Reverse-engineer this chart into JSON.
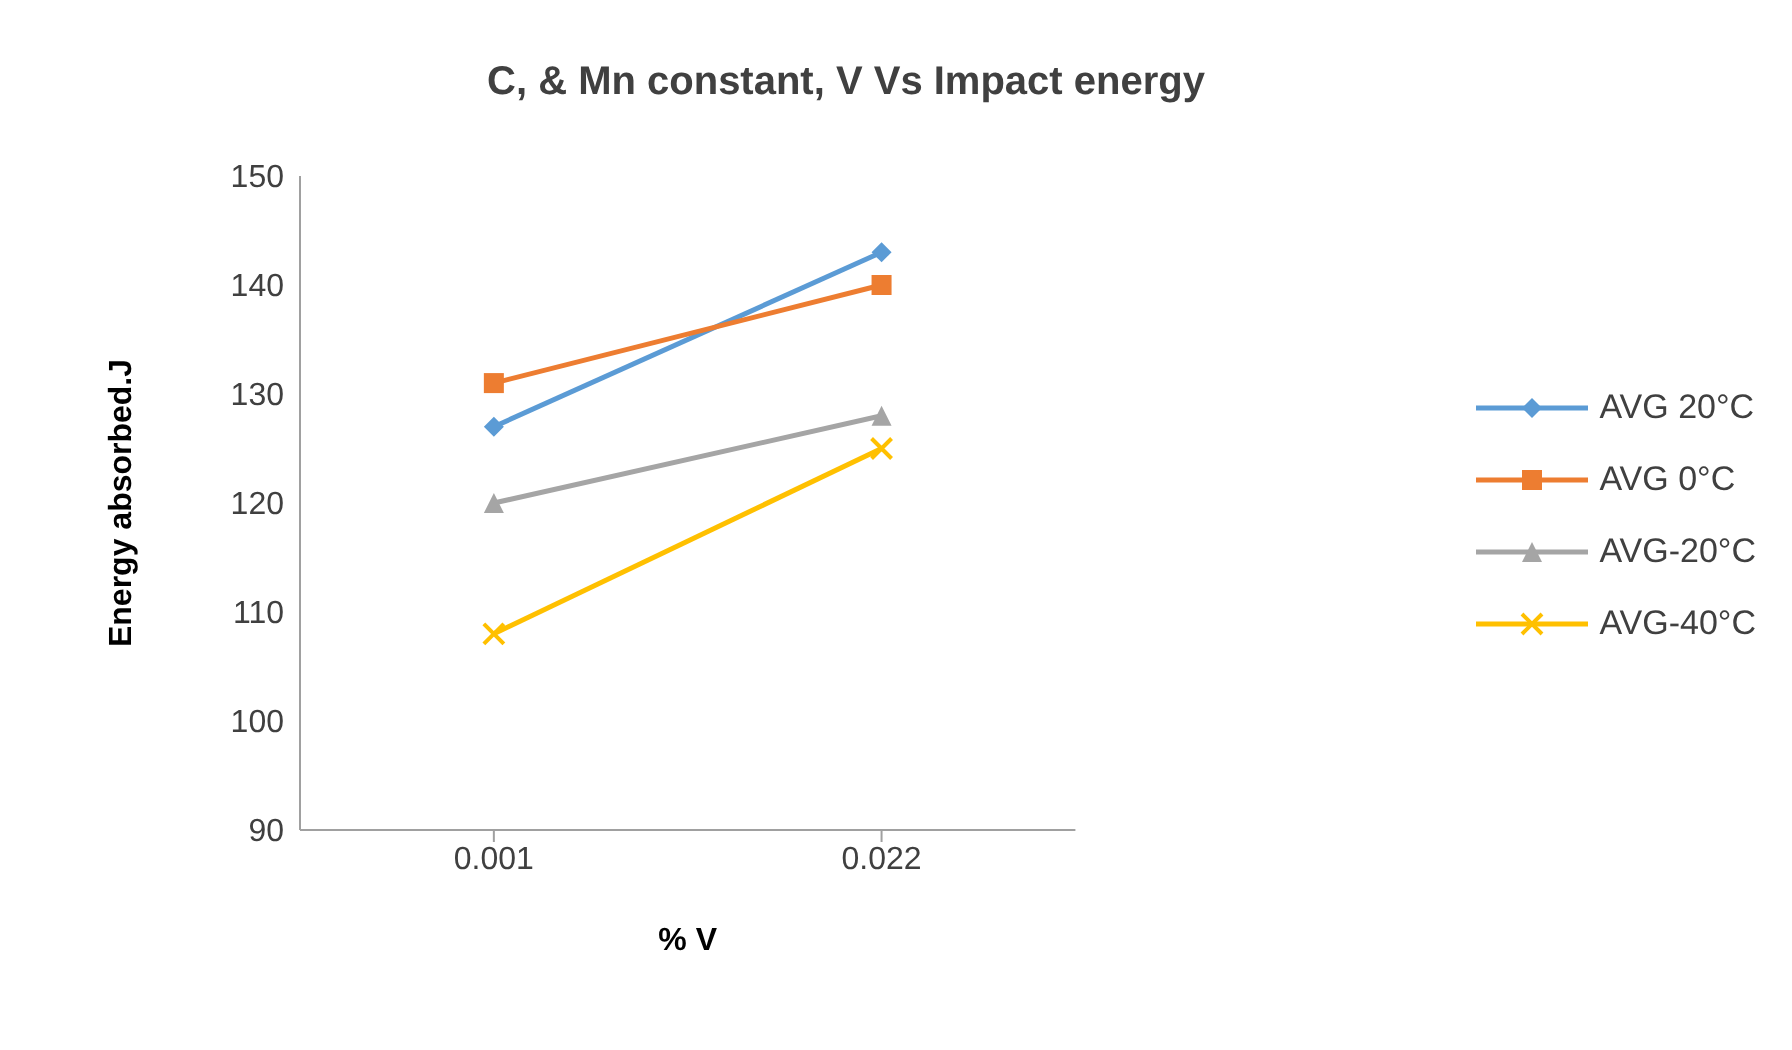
{
  "chart_data": {
    "type": "line",
    "title": "C, & Mn constant, V Vs Impact energy",
    "xlabel": "% V",
    "ylabel": "Energy absorbed.J",
    "categories": [
      "0.001",
      "0.022"
    ],
    "series": [
      {
        "name": "AVG 20°C",
        "color": "#5b9bd5",
        "values": [
          127,
          143
        ],
        "marker": "diamond"
      },
      {
        "name": "AVG 0°C",
        "color": "#ed7d31",
        "values": [
          131,
          140
        ],
        "marker": "square"
      },
      {
        "name": "AVG-20°C",
        "color": "#a5a5a5",
        "values": [
          120,
          128
        ],
        "marker": "triangle"
      },
      {
        "name": "AVG-40°C",
        "color": "#ffc000",
        "values": [
          108,
          125
        ],
        "marker": "cross"
      }
    ],
    "ylim": [
      90,
      150
    ],
    "yticks": [
      90,
      100,
      110,
      120,
      130,
      140,
      150
    ],
    "grid": false,
    "legend": "right"
  }
}
